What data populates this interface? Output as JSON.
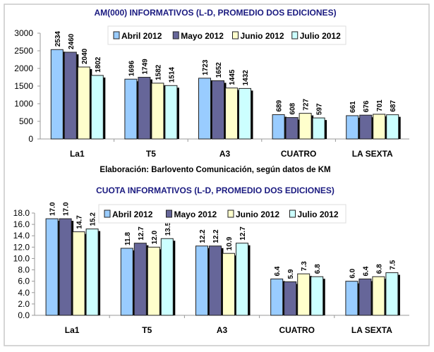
{
  "chart_data": [
    {
      "type": "bar",
      "title": "AM(000) INFORMATIVOS (L-D, PROMEDIO DOS EDICIONES)",
      "categories": [
        "La1",
        "T5",
        "A3",
        "CUATRO",
        "LA SEXTA"
      ],
      "ylim": [
        0,
        3000
      ],
      "yticks": [
        "0",
        "500",
        "1000",
        "1500",
        "2000",
        "2500",
        "3000"
      ],
      "legend": "top",
      "grid": false,
      "series": [
        {
          "name": "Abril 2012",
          "color": "#99ccff",
          "values": [
            2534,
            1696,
            1723,
            689,
            661
          ],
          "labels": [
            "2534",
            "1696",
            "1723",
            "689",
            "661"
          ]
        },
        {
          "name": "Mayo 2012",
          "color": "#666699",
          "values": [
            2460,
            1749,
            1652,
            608,
            676
          ],
          "labels": [
            "2460",
            "1749",
            "1652",
            "608",
            "676"
          ]
        },
        {
          "name": "Junio 2012",
          "color": "#ffffcc",
          "values": [
            2040,
            1582,
            1445,
            727,
            701
          ],
          "labels": [
            "2040",
            "1582",
            "1445",
            "727",
            "701"
          ]
        },
        {
          "name": "Julio 2012",
          "color": "#ccffff",
          "values": [
            1802,
            1514,
            1432,
            597,
            687
          ],
          "labels": [
            "1802",
            "1514",
            "1432",
            "597",
            "687"
          ]
        }
      ]
    },
    {
      "type": "bar",
      "title": "CUOTA INFORMATIVOS (L-D, PROMEDIO DOS EDICIONES)",
      "categories": [
        "La1",
        "T5",
        "A3",
        "CUATRO",
        "LA SEXTA"
      ],
      "ylim": [
        0,
        18
      ],
      "yticks": [
        "0.0",
        "2.0",
        "4.0",
        "6.0",
        "8.0",
        "10.0",
        "12.0",
        "14.0",
        "16.0",
        "18.0"
      ],
      "legend": "top",
      "grid": false,
      "series": [
        {
          "name": "Abril 2012",
          "color": "#99ccff",
          "values": [
            17.0,
            11.8,
            12.2,
            6.4,
            6.0
          ],
          "labels": [
            "17.0",
            "11.8",
            "12.2",
            "6.4",
            "6.0"
          ]
        },
        {
          "name": "Mayo 2012",
          "color": "#666699",
          "values": [
            17.0,
            12.7,
            12.2,
            5.9,
            6.4
          ],
          "labels": [
            "17.0",
            "12.7",
            "12.2",
            "5.9",
            "6.4"
          ]
        },
        {
          "name": "Junio 2012",
          "color": "#ffffcc",
          "values": [
            14.7,
            12.0,
            10.9,
            7.3,
            6.8
          ],
          "labels": [
            "14.7",
            "12.0",
            "10.9",
            "7.3",
            "6.8"
          ]
        },
        {
          "name": "Julio 2012",
          "color": "#ccffff",
          "values": [
            15.2,
            13.5,
            12.7,
            6.8,
            7.5
          ],
          "labels": [
            "15.2",
            "13.5",
            "12.7",
            "6.8",
            "7.5"
          ]
        }
      ]
    }
  ],
  "note": "Elaboración: Barlovento Comunicación, según datos de KM"
}
